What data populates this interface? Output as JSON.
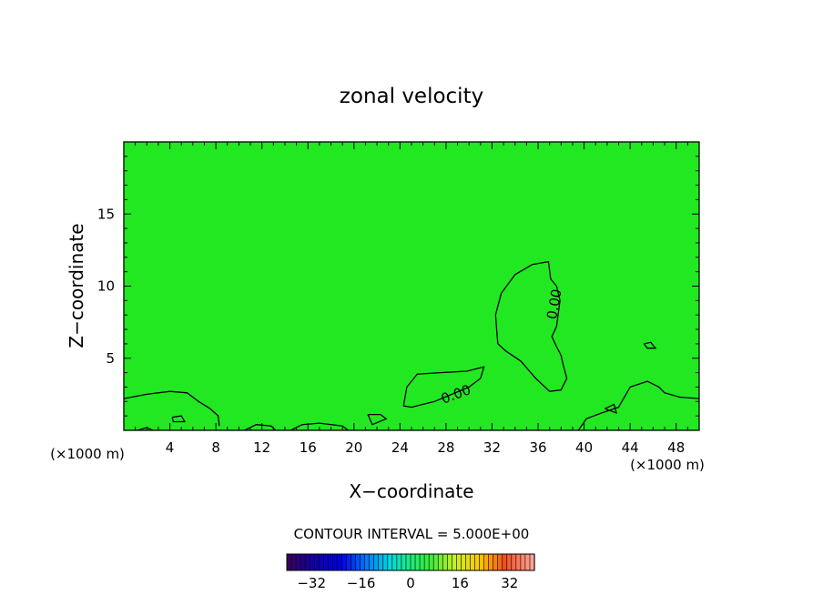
{
  "chart_data": {
    "type": "heatmap",
    "title": "zonal velocity",
    "xlabel": "X−coordinate",
    "ylabel": "Z−coordinate",
    "x_unit_left": "(×1000 m)",
    "x_unit_right": "(×1000 m)",
    "xlim": [
      0,
      50
    ],
    "ylim": [
      0,
      20
    ],
    "x_ticks": [
      4,
      8,
      12,
      16,
      20,
      24,
      28,
      32,
      36,
      40,
      44,
      48
    ],
    "y_ticks": [
      5,
      10,
      15
    ],
    "field_fill_color": "#22e822",
    "contour_interval_text": "CONTOUR INTERVAL = 5.000E+00",
    "contour_labels": [
      {
        "text": "0.00",
        "x": 29,
        "y": 2.2,
        "angle": -20
      },
      {
        "text": "0.00",
        "x": 37.8,
        "y": 8.7,
        "angle": -80
      }
    ],
    "contours_zero": [
      [
        [
          0,
          2.2
        ],
        [
          2,
          2.5
        ],
        [
          4,
          2.7
        ],
        [
          5.5,
          2.6
        ],
        [
          6.5,
          2.0
        ],
        [
          7.5,
          1.5
        ],
        [
          8.2,
          1.0
        ],
        [
          8.3,
          0.3
        ]
      ],
      [
        [
          10.5,
          0.0
        ],
        [
          11.5,
          0.4
        ],
        [
          12.8,
          0.3
        ],
        [
          13.2,
          0.0
        ]
      ],
      [
        [
          14.5,
          0.0
        ],
        [
          15.5,
          0.4
        ],
        [
          17,
          0.5
        ],
        [
          19,
          0.3
        ],
        [
          19.5,
          0.0
        ]
      ],
      [
        [
          24.3,
          1.7
        ],
        [
          24.6,
          3.0
        ],
        [
          25.5,
          3.9
        ],
        [
          27.5,
          4.0
        ],
        [
          29.8,
          4.1
        ],
        [
          31.3,
          4.4
        ],
        [
          31.0,
          3.6
        ],
        [
          30.0,
          3.0
        ],
        [
          28.5,
          2.5
        ],
        [
          27,
          2.0
        ],
        [
          25,
          1.6
        ],
        [
          24.3,
          1.7
        ]
      ],
      [
        [
          32.5,
          6.0
        ],
        [
          32.3,
          8.0
        ],
        [
          32.8,
          9.5
        ],
        [
          34,
          10.8
        ],
        [
          35.5,
          11.5
        ],
        [
          36.9,
          11.7
        ],
        [
          37.1,
          10.5
        ],
        [
          37.6,
          10.0
        ],
        [
          37.9,
          9.0
        ],
        [
          37.6,
          7.2
        ],
        [
          37.2,
          6.5
        ],
        [
          37.6,
          5.8
        ],
        [
          38.0,
          5.2
        ],
        [
          38.2,
          4.5
        ],
        [
          38.5,
          3.6
        ],
        [
          38.0,
          2.8
        ],
        [
          37.0,
          2.7
        ],
        [
          35.8,
          3.6
        ],
        [
          34.5,
          4.8
        ],
        [
          33.2,
          5.5
        ],
        [
          32.5,
          6.0
        ]
      ],
      [
        [
          39.5,
          0.0
        ],
        [
          40.2,
          0.8
        ],
        [
          41.5,
          1.2
        ],
        [
          43,
          1.6
        ],
        [
          44,
          3.0
        ],
        [
          45.5,
          3.4
        ],
        [
          46.5,
          3.0
        ],
        [
          47,
          2.6
        ],
        [
          48.3,
          2.3
        ],
        [
          50,
          2.2
        ]
      ],
      [
        [
          45.2,
          6.0
        ],
        [
          45.8,
          6.1
        ],
        [
          46.2,
          5.7
        ],
        [
          45.5,
          5.7
        ],
        [
          45.2,
          6.0
        ]
      ],
      [
        [
          21.2,
          1.1
        ],
        [
          21.6,
          0.4
        ],
        [
          22.8,
          0.8
        ],
        [
          22.3,
          1.1
        ],
        [
          21.2,
          1.1
        ]
      ],
      [
        [
          41.8,
          1.5
        ],
        [
          42.6,
          1.8
        ],
        [
          42.8,
          1.2
        ],
        [
          41.8,
          1.5
        ]
      ],
      [
        [
          4.2,
          0.9
        ],
        [
          5.0,
          1.0
        ],
        [
          5.3,
          0.6
        ],
        [
          4.3,
          0.6
        ],
        [
          4.2,
          0.9
        ]
      ],
      [
        [
          1.2,
          0.0
        ],
        [
          2.0,
          0.2
        ],
        [
          2.5,
          0.0
        ]
      ]
    ],
    "colorbar": {
      "min": -40,
      "max": 40,
      "tick_values": [
        -32,
        -16,
        0,
        16,
        32
      ],
      "tick_labels": [
        "−32",
        "−16",
        "0",
        "16",
        "32"
      ]
    }
  }
}
